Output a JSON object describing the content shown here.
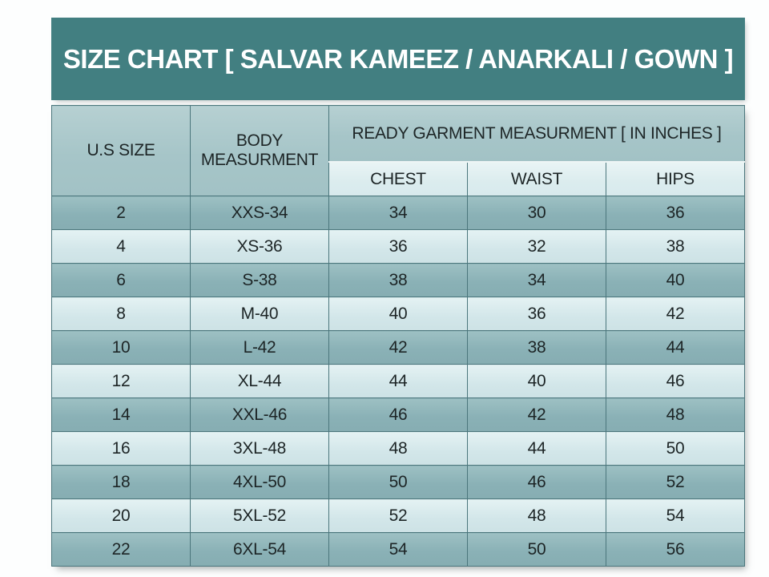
{
  "colors": {
    "title_bar_bg": "#427f81",
    "title_text": "#ffffff",
    "header_cell_bg": "#a9c7c9",
    "subheader_cell_bg": "#dfecee",
    "row_dark_bg": "#8fb6ba",
    "row_light_bg": "#d7eaec",
    "grid_line": "#4b767c",
    "cell_text": "#1d2526"
  },
  "chart_data": {
    "type": "table",
    "title": "SIZE CHART [ SALVAR KAMEEZ / ANARKALI / GOWN ]",
    "header": {
      "us_size": "U.S SIZE",
      "body_measurment": "BODY MEASURMENT",
      "ready_garment_group": "READY GARMENT MEASURMENT [ IN INCHES ]",
      "sub_columns": [
        "CHEST",
        "WAIST",
        "HIPS"
      ]
    },
    "columns": [
      "U.S SIZE",
      "BODY MEASURMENT",
      "CHEST",
      "WAIST",
      "HIPS"
    ],
    "rows": [
      [
        "2",
        "XXS-34",
        "34",
        "30",
        "36"
      ],
      [
        "4",
        "XS-36",
        "36",
        "32",
        "38"
      ],
      [
        "6",
        "S-38",
        "38",
        "34",
        "40"
      ],
      [
        "8",
        "M-40",
        "40",
        "36",
        "42"
      ],
      [
        "10",
        "L-42",
        "42",
        "38",
        "44"
      ],
      [
        "12",
        "XL-44",
        "44",
        "40",
        "46"
      ],
      [
        "14",
        "XXL-46",
        "46",
        "42",
        "48"
      ],
      [
        "16",
        "3XL-48",
        "48",
        "44",
        "50"
      ],
      [
        "18",
        "4XL-50",
        "50",
        "46",
        "52"
      ],
      [
        "20",
        "5XL-52",
        "52",
        "48",
        "54"
      ],
      [
        "22",
        "6XL-54",
        "54",
        "50",
        "56"
      ]
    ]
  }
}
